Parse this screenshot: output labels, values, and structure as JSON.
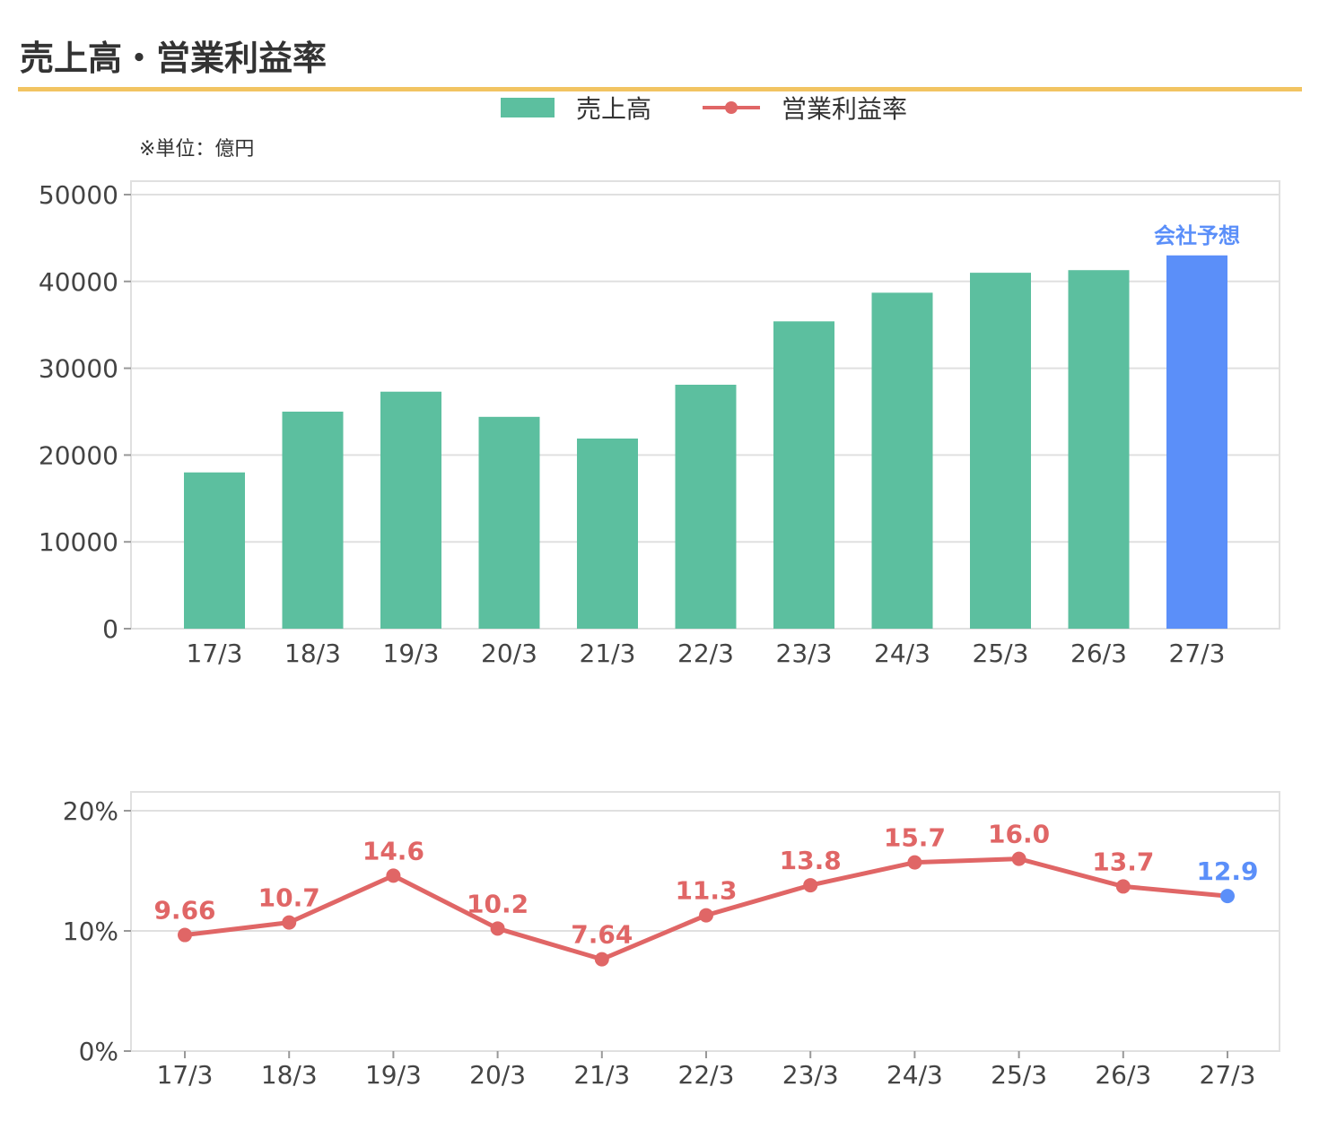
{
  "title": "売上高・営業利益率",
  "unit_note": "※単位：億円",
  "colors": {
    "title_rule": "#f2c462",
    "bar": "#5cbf9f",
    "bar_forecast": "#5b8ff9",
    "line": "#e06666",
    "forecast_point": "#5b8ff9",
    "grid": "#e0e0e0",
    "axis_text": "#444444"
  },
  "legend": {
    "bar_label": "売上高",
    "line_label": "営業利益率"
  },
  "chart_data": [
    {
      "type": "bar",
      "categories": [
        "17/3",
        "18/3",
        "19/3",
        "20/3",
        "21/3",
        "22/3",
        "23/3",
        "24/3",
        "25/3",
        "26/3",
        "27/3"
      ],
      "series": [
        {
          "name": "売上高",
          "values": [
            18000,
            25000,
            27300,
            24400,
            21900,
            28100,
            35400,
            38700,
            41000,
            41300,
            43000
          ]
        }
      ],
      "forecast_index": 10,
      "forecast_label": "会社予想",
      "ylim": [
        0,
        50000
      ],
      "yticks": [
        "0",
        "10000",
        "20000",
        "30000",
        "40000",
        "50000"
      ],
      "ytick_values": [
        0,
        10000,
        20000,
        30000,
        40000,
        50000
      ],
      "grid": true
    },
    {
      "type": "line",
      "categories": [
        "17/3",
        "18/3",
        "19/3",
        "20/3",
        "21/3",
        "22/3",
        "23/3",
        "24/3",
        "25/3",
        "26/3",
        "27/3"
      ],
      "series": [
        {
          "name": "営業利益率",
          "values": [
            9.66,
            10.7,
            14.6,
            10.2,
            7.64,
            11.3,
            13.8,
            15.7,
            16.0,
            13.7,
            12.9
          ]
        }
      ],
      "data_labels": [
        "9.66",
        "10.7",
        "14.6",
        "10.2",
        "7.64",
        "11.3",
        "13.8",
        "15.7",
        "16.0",
        "13.7",
        "12.9"
      ],
      "forecast_index": 10,
      "ylim": [
        0,
        20
      ],
      "yticks": [
        "0%",
        "10%",
        "20%"
      ],
      "ytick_values": [
        0,
        10,
        20
      ],
      "grid": true
    }
  ]
}
